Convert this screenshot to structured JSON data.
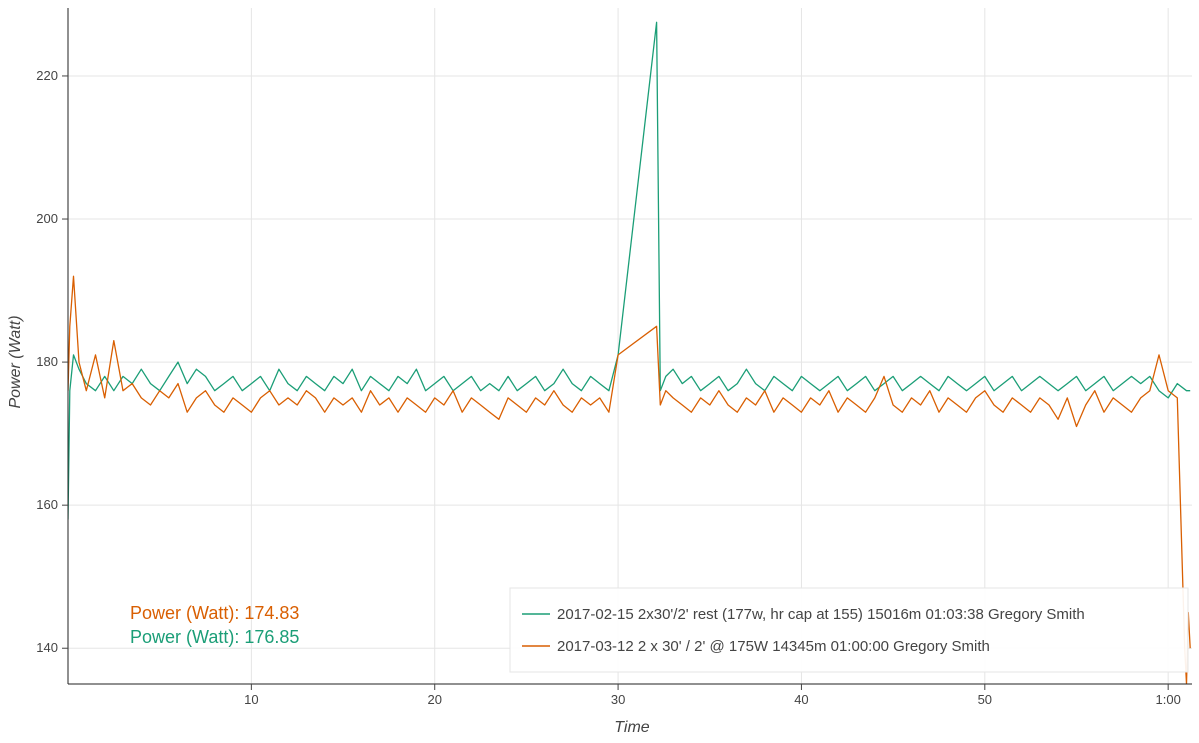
{
  "chart_data": {
    "type": "line",
    "xlabel": "Time",
    "ylabel": "Power (Watt)",
    "xlim": [
      0,
      61.3
    ],
    "ylim": [
      135,
      229.5
    ],
    "x_ticks": [
      {
        "value": 10,
        "label": "10"
      },
      {
        "value": 20,
        "label": "20"
      },
      {
        "value": 30,
        "label": "30"
      },
      {
        "value": 40,
        "label": "40"
      },
      {
        "value": 50,
        "label": "50"
      },
      {
        "value": 60,
        "label": "1:00"
      }
    ],
    "y_ticks": [
      {
        "value": 140,
        "label": "140"
      },
      {
        "value": 160,
        "label": "160"
      },
      {
        "value": 180,
        "label": "180"
      },
      {
        "value": 200,
        "label": "200"
      },
      {
        "value": 220,
        "label": "220"
      }
    ],
    "grid": true,
    "legend_position": "bottom-right",
    "series": [
      {
        "name": "2017-02-15 2x30'/2' rest (177w, hr cap at 155) 15016m 01:03:38 Gregory Smith",
        "color": "#1b9e77",
        "mean": 176.85,
        "x": [
          0.0,
          0.1,
          0.3,
          0.6,
          1.0,
          1.5,
          2.0,
          2.5,
          3.0,
          3.5,
          4.0,
          4.5,
          5.0,
          5.5,
          6.0,
          6.5,
          7.0,
          7.5,
          8.0,
          8.5,
          9.0,
          9.5,
          10.0,
          10.5,
          11.0,
          11.5,
          12.0,
          12.5,
          13.0,
          13.5,
          14.0,
          14.5,
          15.0,
          15.5,
          16.0,
          16.5,
          17.0,
          17.5,
          18.0,
          18.5,
          19.0,
          19.5,
          20.0,
          20.5,
          21.0,
          21.5,
          22.0,
          22.5,
          23.0,
          23.5,
          24.0,
          24.5,
          25.0,
          25.5,
          26.0,
          26.5,
          27.0,
          27.5,
          28.0,
          28.5,
          29.0,
          29.5,
          30.0,
          32.1,
          32.3,
          32.6,
          33.0,
          33.5,
          34.0,
          34.5,
          35.0,
          35.5,
          36.0,
          36.5,
          37.0,
          37.5,
          38.0,
          38.5,
          39.0,
          39.5,
          40.0,
          40.5,
          41.0,
          41.5,
          42.0,
          42.5,
          43.0,
          43.5,
          44.0,
          44.5,
          45.0,
          45.5,
          46.0,
          46.5,
          47.0,
          47.5,
          48.0,
          48.5,
          49.0,
          49.5,
          50.0,
          50.5,
          51.0,
          51.5,
          52.0,
          52.5,
          53.0,
          53.5,
          54.0,
          54.5,
          55.0,
          55.5,
          56.0,
          56.5,
          57.0,
          57.5,
          58.0,
          58.5,
          59.0,
          59.5,
          60.0,
          60.5,
          61.0,
          61.2
        ],
        "y": [
          158,
          176,
          181,
          179,
          177,
          176,
          178,
          176,
          178,
          177,
          179,
          177,
          176,
          178,
          180,
          177,
          179,
          178,
          176,
          177,
          178,
          176,
          177,
          178,
          176,
          179,
          177,
          176,
          178,
          177,
          176,
          178,
          177,
          179,
          176,
          178,
          177,
          176,
          178,
          177,
          179,
          176,
          177,
          178,
          176,
          177,
          178,
          176,
          177,
          176,
          178,
          176,
          177,
          178,
          176,
          177,
          179,
          177,
          176,
          178,
          177,
          176,
          181,
          227.5,
          176,
          178,
          179,
          177,
          178,
          176,
          177,
          178,
          176,
          177,
          179,
          177,
          176,
          178,
          177,
          176,
          178,
          177,
          176,
          177,
          178,
          176,
          177,
          178,
          176,
          177,
          178,
          176,
          177,
          178,
          177,
          176,
          178,
          177,
          176,
          177,
          178,
          176,
          177,
          178,
          176,
          177,
          178,
          177,
          176,
          177,
          178,
          176,
          177,
          178,
          176,
          177,
          178,
          177,
          178,
          176,
          175,
          177,
          176,
          176
        ]
      },
      {
        "name": "2017-03-12 2 x 30' / 2' @ 175W 14345m 01:00:00 Gregory Smith",
        "color": "#d95f02",
        "mean": 174.83,
        "x": [
          0.0,
          0.1,
          0.3,
          0.6,
          1.0,
          1.5,
          2.0,
          2.5,
          3.0,
          3.5,
          4.0,
          4.5,
          5.0,
          5.5,
          6.0,
          6.5,
          7.0,
          7.5,
          8.0,
          8.5,
          9.0,
          9.5,
          10.0,
          10.5,
          11.0,
          11.5,
          12.0,
          12.5,
          13.0,
          13.5,
          14.0,
          14.5,
          15.0,
          15.5,
          16.0,
          16.5,
          17.0,
          17.5,
          18.0,
          18.5,
          19.0,
          19.5,
          20.0,
          20.5,
          21.0,
          21.5,
          22.0,
          22.5,
          23.0,
          23.5,
          24.0,
          24.5,
          25.0,
          25.5,
          26.0,
          26.5,
          27.0,
          27.5,
          28.0,
          28.5,
          29.0,
          29.5,
          30.0,
          32.1,
          32.3,
          32.6,
          33.0,
          33.5,
          34.0,
          34.5,
          35.0,
          35.5,
          36.0,
          36.5,
          37.0,
          37.5,
          38.0,
          38.5,
          39.0,
          39.5,
          40.0,
          40.5,
          41.0,
          41.5,
          42.0,
          42.5,
          43.0,
          43.5,
          44.0,
          44.5,
          45.0,
          45.5,
          46.0,
          46.5,
          47.0,
          47.5,
          48.0,
          48.5,
          49.0,
          49.5,
          50.0,
          50.5,
          51.0,
          51.5,
          52.0,
          52.5,
          53.0,
          53.5,
          54.0,
          54.5,
          55.0,
          55.5,
          56.0,
          56.5,
          57.0,
          57.5,
          58.0,
          58.5,
          59.0,
          59.5,
          60.0,
          60.5,
          60.9,
          61.0,
          61.1,
          61.2
        ],
        "y": [
          176,
          185,
          192,
          180,
          176,
          181,
          175,
          183,
          176,
          177,
          175,
          174,
          176,
          175,
          177,
          173,
          175,
          176,
          174,
          173,
          175,
          174,
          173,
          175,
          176,
          174,
          175,
          174,
          176,
          175,
          173,
          175,
          174,
          175,
          173,
          176,
          174,
          175,
          173,
          175,
          174,
          173,
          175,
          174,
          176,
          173,
          175,
          174,
          173,
          172,
          175,
          174,
          173,
          175,
          174,
          176,
          174,
          173,
          175,
          174,
          175,
          173,
          181,
          185,
          174,
          176,
          175,
          174,
          173,
          175,
          174,
          176,
          174,
          173,
          175,
          174,
          176,
          173,
          175,
          174,
          173,
          175,
          174,
          176,
          173,
          175,
          174,
          173,
          175,
          178,
          174,
          173,
          175,
          174,
          176,
          173,
          175,
          174,
          173,
          175,
          176,
          174,
          173,
          175,
          174,
          173,
          175,
          174,
          172,
          175,
          171,
          174,
          176,
          173,
          175,
          174,
          173,
          175,
          176,
          181,
          176,
          175,
          140,
          135,
          145,
          140
        ]
      }
    ],
    "annotations": [
      {
        "text": "Power (Watt): 174.83",
        "color": "#d95f02"
      },
      {
        "text": "Power (Watt): 176.85",
        "color": "#1b9e77"
      }
    ]
  }
}
